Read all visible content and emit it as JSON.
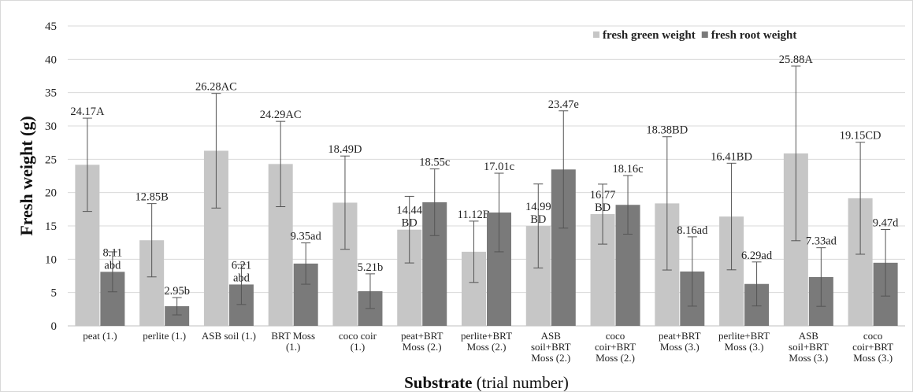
{
  "chart_data": {
    "type": "bar",
    "xlabel_bold": "Substrate",
    "xlabel_rest": " (trial number)",
    "ylabel": "Fresh weight (g)",
    "ylim": [
      0,
      45
    ],
    "yticks": [
      "0",
      "5",
      "10",
      "15",
      "20",
      "25",
      "30",
      "35",
      "40",
      "45"
    ],
    "grid": true,
    "legend_position": "top-right",
    "categories": [
      [
        "peat (1.)"
      ],
      [
        "perlite (1.)"
      ],
      [
        "ASB soil (1.)"
      ],
      [
        "BRT Moss",
        "(1.)"
      ],
      [
        "coco coir",
        "(1.)"
      ],
      [
        "peat+BRT",
        "Moss (2.)"
      ],
      [
        "perlite+BRT",
        "Moss (2.)"
      ],
      [
        "ASB",
        "soil+BRT",
        "Moss (2.)"
      ],
      [
        "coco",
        "coir+BRT",
        "Moss (2.)"
      ],
      [
        "peat+BRT",
        "Moss (3.)"
      ],
      [
        "perlite+BRT",
        "Moss (3.)"
      ],
      [
        "ASB",
        "soil+BRT",
        "Moss (3.)"
      ],
      [
        "coco",
        "coir+BRT",
        "Moss (3.)"
      ]
    ],
    "series": [
      {
        "name": "fresh green weight",
        "color": "#c6c6c6",
        "values": [
          24.17,
          12.85,
          26.28,
          24.29,
          18.49,
          14.44,
          11.12,
          14.99,
          16.77,
          18.38,
          16.41,
          25.88,
          19.15
        ],
        "error": [
          7.0,
          5.5,
          8.6,
          6.4,
          7.0,
          5.0,
          4.6,
          6.3,
          4.5,
          10.0,
          8.0,
          13.1,
          8.4
        ],
        "labels": [
          [
            "24.17A"
          ],
          [
            "12.85B"
          ],
          [
            "26.28AC"
          ],
          [
            "24.29AC"
          ],
          [
            "18.49D"
          ],
          [
            "14.44",
            "BD"
          ],
          [
            "11.12B"
          ],
          [
            "14.99",
            "BD"
          ],
          [
            "16.77",
            "BD"
          ],
          [
            "18.38BD"
          ],
          [
            "16.41BD"
          ],
          [
            "25.88A"
          ],
          [
            "19.15CD"
          ]
        ]
      },
      {
        "name": "fresh root weight",
        "color": "#7a7a7a",
        "values": [
          8.11,
          2.95,
          6.21,
          9.35,
          5.21,
          18.55,
          17.01,
          23.47,
          18.16,
          8.16,
          6.29,
          7.33,
          9.47
        ],
        "error": [
          3.0,
          1.3,
          3.0,
          3.1,
          2.6,
          5.0,
          5.9,
          8.8,
          4.4,
          5.2,
          3.3,
          4.4,
          5.0
        ],
        "labels": [
          [
            "8.11",
            "abd"
          ],
          [
            "2.95b"
          ],
          [
            "6.21",
            "abd"
          ],
          [
            "9.35ad"
          ],
          [
            "5.21b"
          ],
          [
            "18.55c"
          ],
          [
            "17.01c"
          ],
          [
            "23.47e"
          ],
          [
            "18.16c"
          ],
          [
            "8.16ad"
          ],
          [
            "6.29ad"
          ],
          [
            "7.33ad"
          ],
          [
            "9.47d"
          ]
        ]
      }
    ]
  }
}
